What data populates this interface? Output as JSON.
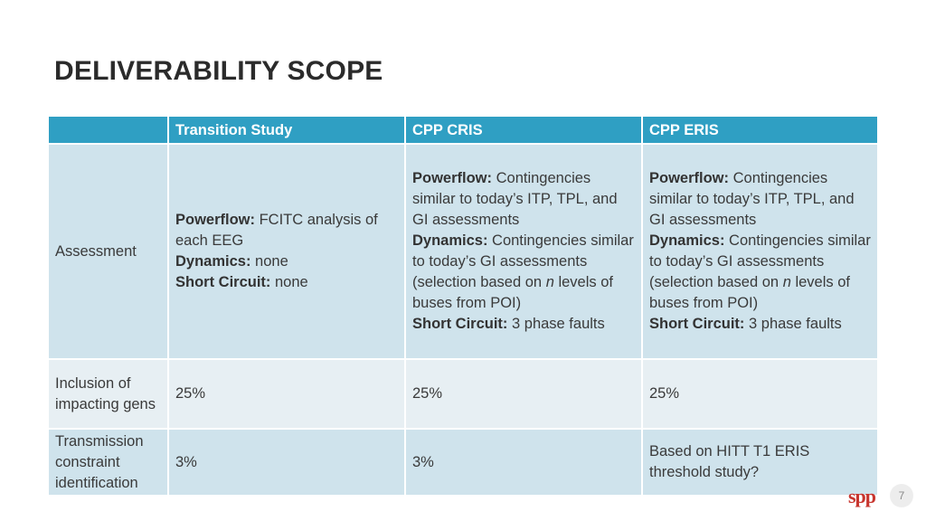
{
  "title": "DELIVERABILITY SCOPE",
  "table": {
    "headers": [
      "",
      "Transition Study",
      "CPP CRIS",
      "CPP ERIS"
    ],
    "assessment": {
      "label": "Assessment",
      "transition": {
        "powerflow_label": "Powerflow:",
        "powerflow_text": " FCITC analysis of each EEG",
        "dynamics_label": "Dynamics:",
        "dynamics_text": " none",
        "short_label": "Short Circuit:",
        "short_text": " none"
      },
      "cris": {
        "powerflow_label": "Powerflow:",
        "powerflow_text": " Contingencies similar to today’s ITP, TPL, and GI assessments",
        "dynamics_label": "Dynamics:",
        "dynamics_text_a": " Contingencies similar to today’s GI assessments (selection based on ",
        "dynamics_n": "n",
        "dynamics_text_b": " levels of buses from POI)",
        "short_label": "Short Circuit:",
        "short_text": " 3 phase faults"
      },
      "eris": {
        "powerflow_label": "Powerflow:",
        "powerflow_text": " Contingencies similar to today’s ITP, TPL, and GI assessments",
        "dynamics_label": "Dynamics:",
        "dynamics_text_a": " Contingencies similar to today’s GI assessments (selection based on ",
        "dynamics_n": "n",
        "dynamics_text_b": " levels of buses from POI)",
        "short_label": "Short Circuit:",
        "short_text": " 3 phase faults"
      }
    },
    "inclusion": {
      "label": "Inclusion of impacting gens",
      "transition": "25%",
      "cris": "25%",
      "eris": "25%"
    },
    "transmission": {
      "label": "Transmission constraint identification",
      "transition": "3%",
      "cris": "3%",
      "eris": "Based on HITT T1 ERIS threshold study?"
    }
  },
  "logo": "spp",
  "page_number": "7"
}
